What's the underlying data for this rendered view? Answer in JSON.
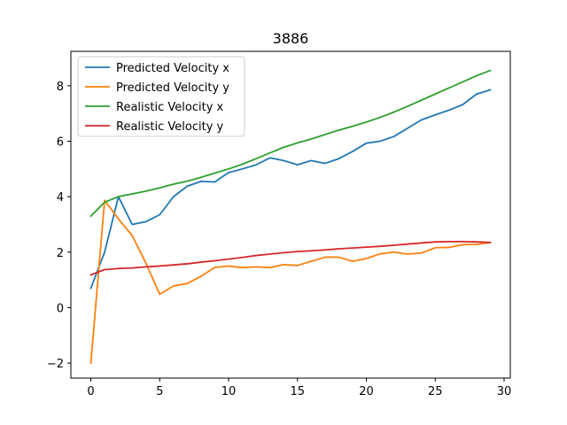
{
  "chart_data": {
    "type": "line",
    "title": "3886",
    "xlabel": "",
    "ylabel": "",
    "xlim": [
      -1.45,
      30.45
    ],
    "ylim": [
      -2.54,
      9.24
    ],
    "xticks": [
      0,
      5,
      10,
      15,
      20,
      25,
      30
    ],
    "yticks": [
      -2,
      0,
      2,
      4,
      6,
      8
    ],
    "grid": false,
    "legend_position": "top-left",
    "x": [
      0,
      1,
      2,
      3,
      4,
      5,
      6,
      7,
      8,
      9,
      10,
      11,
      12,
      13,
      14,
      15,
      16,
      17,
      18,
      19,
      20,
      21,
      22,
      23,
      24,
      25,
      26,
      27,
      28,
      29
    ],
    "series": [
      {
        "name": "Predicted Velocity x",
        "color": "#1f77b4",
        "values": [
          0.7,
          2.0,
          4.0,
          3.0,
          3.1,
          3.35,
          4.0,
          4.38,
          4.55,
          4.53,
          4.87,
          5.0,
          5.15,
          5.4,
          5.3,
          5.15,
          5.3,
          5.2,
          5.37,
          5.63,
          5.93,
          6.0,
          6.17,
          6.47,
          6.77,
          6.95,
          7.12,
          7.32,
          7.7,
          7.85
        ]
      },
      {
        "name": "Predicted Velocity y",
        "color": "#ff7f0e",
        "values": [
          -2.0,
          3.87,
          3.2,
          2.6,
          1.6,
          0.48,
          0.78,
          0.87,
          1.13,
          1.45,
          1.5,
          1.44,
          1.47,
          1.44,
          1.55,
          1.52,
          1.67,
          1.82,
          1.82,
          1.67,
          1.77,
          1.94,
          2.0,
          1.93,
          1.97,
          2.16,
          2.17,
          2.27,
          2.28,
          2.35
        ]
      },
      {
        "name": "Realistic Velocity x",
        "color": "#2ca02c",
        "values": [
          3.3,
          3.8,
          4.0,
          4.1,
          4.2,
          4.32,
          4.45,
          4.56,
          4.7,
          4.85,
          5.0,
          5.17,
          5.37,
          5.58,
          5.78,
          5.94,
          6.08,
          6.24,
          6.4,
          6.54,
          6.69,
          6.86,
          7.05,
          7.26,
          7.48,
          7.7,
          7.92,
          8.14,
          8.36,
          8.55
        ]
      },
      {
        "name": "Realistic Velocity y",
        "color": "#d62728",
        "values": [
          1.18,
          1.37,
          1.41,
          1.43,
          1.47,
          1.5,
          1.54,
          1.58,
          1.64,
          1.69,
          1.75,
          1.81,
          1.88,
          1.93,
          1.98,
          2.02,
          2.05,
          2.08,
          2.12,
          2.15,
          2.18,
          2.21,
          2.25,
          2.29,
          2.33,
          2.37,
          2.38,
          2.38,
          2.37,
          2.35
        ]
      }
    ]
  }
}
